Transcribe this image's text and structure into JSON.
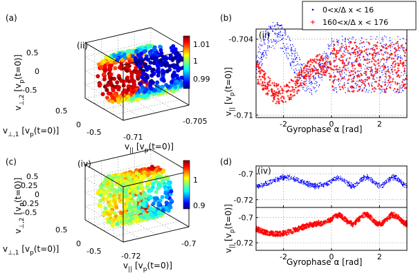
{
  "chart_data": [
    {
      "panel": "(a)",
      "inset": "(ii)",
      "type": "scatter3d",
      "colormap": "jet",
      "colorbar": {
        "min": 0.985,
        "max": 1.012,
        "ticks": [
          "1.01",
          "1",
          "0.99"
        ]
      },
      "axes": {
        "v_par": {
          "label_main": "v",
          "label_sub": "||",
          "label_rest": " [v",
          "label_sub2": "p",
          "label_end": "(t=0)]",
          "ticks": [
            "-0.71",
            "-0.705"
          ],
          "lim": [
            -0.712,
            -0.703
          ]
        },
        "v_perp1": {
          "label_main": "v",
          "label_sub": "⊥,1",
          "label_rest": " [v",
          "label_sub2": "p",
          "label_end": "(t=0)]",
          "ticks": [
            "0.5",
            "0",
            "-0.5"
          ],
          "lim": [
            -0.7,
            0.7
          ]
        },
        "v_perp2": {
          "label_main": "v",
          "label_sub": "⊥,2",
          "label_rest": " [v",
          "label_sub2": "p",
          "label_end": "(t=0)]",
          "ticks": [
            "0.5",
            "0",
            "-0.5"
          ],
          "lim": [
            -0.7,
            0.7
          ]
        }
      }
    },
    {
      "panel": "(b)",
      "inset": "(ii)",
      "type": "scatter",
      "xlabel": "Gyrophase α [rad]",
      "ylabel_main": "v",
      "ylabel_sub": "||",
      "ylabel_rest": " [v",
      "ylabel_sub2": "p",
      "ylabel_end": "(t=0)]",
      "xlim": [
        -3.14,
        3.14
      ],
      "ylim": [
        -0.7102,
        -0.7032
      ],
      "xticks": [
        {
          "v": -2,
          "t": "-2"
        },
        {
          "v": 0,
          "t": "0"
        },
        {
          "v": 2,
          "t": "2"
        }
      ],
      "yticks": [
        {
          "v": -0.704,
          "t": "-0.704"
        },
        {
          "v": -0.71,
          "t": "-0.71"
        }
      ],
      "series": [
        {
          "name": "0<x/Δ x < 16",
          "color": "#0000ff",
          "marker": "dot",
          "center": -0.7055,
          "amplitude": 0.0018,
          "phase": 0.4
        },
        {
          "name": "160<x/Δ x < 176",
          "color": "#ff0000",
          "marker": "plus",
          "center": -0.7072,
          "amplitude": 0.0012,
          "phase": 2.6
        }
      ]
    },
    {
      "panel": "(c)",
      "inset": "(iv)",
      "type": "scatter3d",
      "colormap": "jet",
      "colorbar": {
        "min": 0.86,
        "max": 1.06,
        "ticks": [
          "1",
          "0.9"
        ]
      },
      "axes": {
        "v_par": {
          "label_main": "v",
          "label_sub": "||",
          "label_rest": " [v",
          "label_sub2": "p",
          "label_end": "(t=0)]",
          "ticks": [
            "-0.72",
            "-0.7"
          ],
          "lim": [
            -0.73,
            -0.69
          ]
        },
        "v_perp1": {
          "label_main": "v",
          "label_sub": "⊥,1",
          "label_rest": " [v",
          "label_sub2": "p",
          "label_end": "(t=0)]",
          "ticks": [
            "0.5",
            "0",
            "-0.5"
          ],
          "lim": [
            -0.7,
            0.7
          ]
        },
        "v_perp2": {
          "label_main": "v",
          "label_sub": "⊥,2",
          "label_rest": " [v",
          "label_sub2": "p",
          "label_end": "(t=0)]",
          "ticks": [
            "0.5",
            "0.25",
            "0",
            "-0.25",
            "-0.5"
          ],
          "lim": [
            -0.7,
            0.7
          ]
        }
      }
    },
    {
      "panel": "(d)",
      "inset": "(iv)",
      "type": "scatter",
      "xlabel": "Gyrophase α [rad]",
      "ylabel_main": "v",
      "ylabel_sub": "||",
      "ylabel_rest": " [v",
      "ylabel_sub2": "p",
      "ylabel_end": "(t=0)]",
      "xlim": [
        -3.14,
        3.14
      ],
      "xticks": [
        {
          "v": -2,
          "t": "-2"
        },
        {
          "v": 0,
          "t": "0"
        },
        {
          "v": 2,
          "t": "2"
        }
      ],
      "subplots": [
        {
          "ylim": [
            -0.726,
            -0.694
          ],
          "yticks": [
            {
              "v": -0.7,
              "t": "-0.7"
            },
            {
              "v": -0.72,
              "t": "-0.72"
            }
          ],
          "series": {
            "name": "0<x/Δ x < 16",
            "color": "#0000ff",
            "marker": "dot",
            "center": -0.706,
            "amplitude": 0.004
          }
        },
        {
          "ylim": [
            -0.726,
            -0.692
          ],
          "yticks": [
            {
              "v": -0.7,
              "t": "-0.7"
            },
            {
              "v": -0.72,
              "t": "-0.72"
            }
          ],
          "series": {
            "name": "160<x/Δ x < 176",
            "color": "#ff0000",
            "marker": "plus",
            "center": -0.7015,
            "amplitude": 0.0045
          }
        }
      ]
    }
  ]
}
